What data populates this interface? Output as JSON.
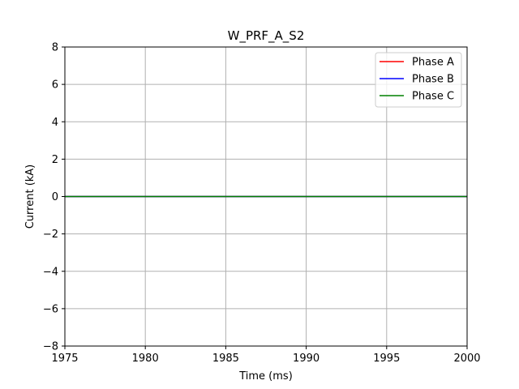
{
  "chart_data": {
    "type": "line",
    "title": "W_PRF_A_S2",
    "xlabel": "Time (ms)",
    "ylabel": "Current (kA)",
    "xlim": [
      1975,
      2000
    ],
    "ylim": [
      -8,
      8
    ],
    "xticks": [
      1975,
      1980,
      1985,
      1990,
      1995,
      2000
    ],
    "yticks": [
      -8,
      -6,
      -4,
      -2,
      0,
      2,
      4,
      6,
      8
    ],
    "grid": true,
    "legend_position": "top-right",
    "series": [
      {
        "name": "Phase A",
        "color": "#ff0000",
        "x": [
          1975,
          2000
        ],
        "y": [
          0,
          0
        ]
      },
      {
        "name": "Phase B",
        "color": "#0000ff",
        "x": [
          1975,
          2000
        ],
        "y": [
          0,
          0
        ]
      },
      {
        "name": "Phase C",
        "color": "#008000",
        "x": [
          1975,
          2000
        ],
        "y": [
          0,
          0
        ]
      }
    ]
  }
}
